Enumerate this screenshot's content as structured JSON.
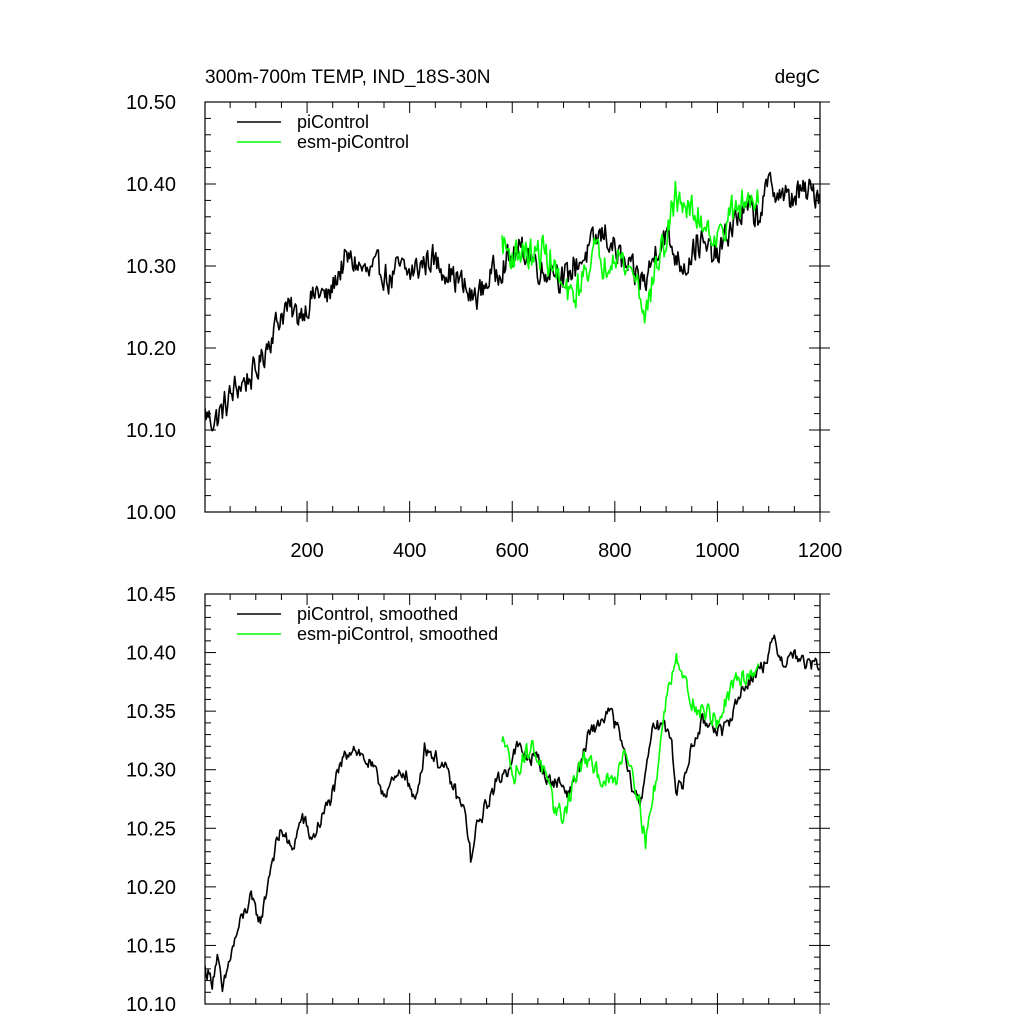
{
  "chart_data": [
    {
      "type": "line",
      "title": "300m-700m TEMP, IND_18S-30N",
      "units": "degC",
      "xlim": [
        1,
        1200
      ],
      "ylim": [
        10.0,
        10.5
      ],
      "xticks": [
        200,
        400,
        600,
        800,
        1000,
        1200
      ],
      "xtick_labels": [
        "200",
        "400",
        "600",
        "800",
        "1000",
        "1200"
      ],
      "yticks": [
        10.0,
        10.1,
        10.2,
        10.3,
        10.4,
        10.5
      ],
      "ytick_labels": [
        "10.00",
        "10.10",
        "10.20",
        "10.30",
        "10.40",
        "10.50"
      ],
      "legend_position": "top-left",
      "series": [
        {
          "name": "piControl",
          "color": "#000000",
          "noise": 0.022,
          "points": [
            [
              1,
              10.12
            ],
            [
              20,
              10.11
            ],
            [
              40,
              10.13
            ],
            [
              60,
              10.15
            ],
            [
              80,
              10.16
            ],
            [
              100,
              10.17
            ],
            [
              120,
              10.2
            ],
            [
              140,
              10.23
            ],
            [
              160,
              10.25
            ],
            [
              180,
              10.24
            ],
            [
              200,
              10.25
            ],
            [
              220,
              10.27
            ],
            [
              240,
              10.26
            ],
            [
              260,
              10.29
            ],
            [
              280,
              10.31
            ],
            [
              300,
              10.3
            ],
            [
              320,
              10.29
            ],
            [
              340,
              10.3
            ],
            [
              360,
              10.28
            ],
            [
              380,
              10.3
            ],
            [
              400,
              10.29
            ],
            [
              420,
              10.3
            ],
            [
              440,
              10.31
            ],
            [
              460,
              10.3
            ],
            [
              480,
              10.29
            ],
            [
              500,
              10.28
            ],
            [
              520,
              10.26
            ],
            [
              540,
              10.27
            ],
            [
              560,
              10.29
            ],
            [
              580,
              10.3
            ],
            [
              600,
              10.31
            ],
            [
              620,
              10.32
            ],
            [
              640,
              10.31
            ],
            [
              660,
              10.29
            ],
            [
              680,
              10.3
            ],
            [
              700,
              10.28
            ],
            [
              720,
              10.3
            ],
            [
              740,
              10.31
            ],
            [
              760,
              10.33
            ],
            [
              780,
              10.34
            ],
            [
              800,
              10.32
            ],
            [
              820,
              10.3
            ],
            [
              840,
              10.29
            ],
            [
              860,
              10.28
            ],
            [
              880,
              10.32
            ],
            [
              900,
              10.34
            ],
            [
              920,
              10.31
            ],
            [
              940,
              10.3
            ],
            [
              960,
              10.33
            ],
            [
              980,
              10.32
            ],
            [
              1000,
              10.31
            ],
            [
              1020,
              10.34
            ],
            [
              1040,
              10.36
            ],
            [
              1060,
              10.37
            ],
            [
              1080,
              10.36
            ],
            [
              1100,
              10.4
            ],
            [
              1120,
              10.39
            ],
            [
              1140,
              10.38
            ],
            [
              1160,
              10.39
            ],
            [
              1180,
              10.39
            ],
            [
              1200,
              10.39
            ]
          ]
        },
        {
          "name": "esm-piControl",
          "color": "#00ff00",
          "noise": 0.024,
          "points": [
            [
              580,
              10.33
            ],
            [
              600,
              10.31
            ],
            [
              620,
              10.32
            ],
            [
              640,
              10.31
            ],
            [
              660,
              10.32
            ],
            [
              680,
              10.3
            ],
            [
              700,
              10.27
            ],
            [
              720,
              10.26
            ],
            [
              740,
              10.29
            ],
            [
              760,
              10.32
            ],
            [
              780,
              10.3
            ],
            [
              800,
              10.32
            ],
            [
              820,
              10.3
            ],
            [
              840,
              10.29
            ],
            [
              860,
              10.24
            ],
            [
              880,
              10.3
            ],
            [
              900,
              10.33
            ],
            [
              920,
              10.39
            ],
            [
              940,
              10.37
            ],
            [
              960,
              10.36
            ],
            [
              980,
              10.35
            ],
            [
              1000,
              10.33
            ],
            [
              1020,
              10.36
            ],
            [
              1040,
              10.37
            ],
            [
              1060,
              10.38
            ],
            [
              1080,
              10.39
            ]
          ]
        }
      ]
    },
    {
      "type": "line",
      "xlim": [
        1,
        1200
      ],
      "ylim": [
        10.1,
        10.45
      ],
      "xticks": [
        200,
        400,
        600,
        800,
        1000,
        1200
      ],
      "yticks": [
        10.1,
        10.15,
        10.2,
        10.25,
        10.3,
        10.35,
        10.4,
        10.45
      ],
      "ytick_labels": [
        "10.10",
        "10.15",
        "10.20",
        "10.25",
        "10.30",
        "10.35",
        "10.40",
        "10.45"
      ],
      "legend_position": "top-left",
      "series": [
        {
          "name": "piControl, smoothed",
          "color": "#000000",
          "noise": 0.008,
          "points": [
            [
              1,
              10.13
            ],
            [
              15,
              10.12
            ],
            [
              25,
              10.14
            ],
            [
              35,
              10.11
            ],
            [
              50,
              10.14
            ],
            [
              70,
              10.17
            ],
            [
              90,
              10.19
            ],
            [
              110,
              10.17
            ],
            [
              130,
              10.22
            ],
            [
              150,
              10.25
            ],
            [
              170,
              10.23
            ],
            [
              190,
              10.26
            ],
            [
              210,
              10.24
            ],
            [
              230,
              10.26
            ],
            [
              250,
              10.28
            ],
            [
              270,
              10.31
            ],
            [
              290,
              10.32
            ],
            [
              310,
              10.31
            ],
            [
              330,
              10.3
            ],
            [
              350,
              10.28
            ],
            [
              370,
              10.29
            ],
            [
              390,
              10.3
            ],
            [
              410,
              10.27
            ],
            [
              430,
              10.32
            ],
            [
              450,
              10.31
            ],
            [
              470,
              10.3
            ],
            [
              490,
              10.28
            ],
            [
              510,
              10.26
            ],
            [
              520,
              10.22
            ],
            [
              530,
              10.25
            ],
            [
              550,
              10.27
            ],
            [
              570,
              10.29
            ],
            [
              590,
              10.3
            ],
            [
              610,
              10.32
            ],
            [
              630,
              10.31
            ],
            [
              650,
              10.31
            ],
            [
              670,
              10.29
            ],
            [
              690,
              10.29
            ],
            [
              710,
              10.28
            ],
            [
              730,
              10.3
            ],
            [
              750,
              10.33
            ],
            [
              770,
              10.34
            ],
            [
              790,
              10.35
            ],
            [
              810,
              10.33
            ],
            [
              830,
              10.29
            ],
            [
              850,
              10.27
            ],
            [
              870,
              10.33
            ],
            [
              890,
              10.34
            ],
            [
              910,
              10.33
            ],
            [
              920,
              10.28
            ],
            [
              935,
              10.29
            ],
            [
              950,
              10.32
            ],
            [
              970,
              10.34
            ],
            [
              990,
              10.34
            ],
            [
              1010,
              10.33
            ],
            [
              1030,
              10.35
            ],
            [
              1050,
              10.37
            ],
            [
              1070,
              10.38
            ],
            [
              1090,
              10.39
            ],
            [
              1110,
              10.41
            ],
            [
              1130,
              10.39
            ],
            [
              1150,
              10.4
            ],
            [
              1170,
              10.39
            ],
            [
              1190,
              10.39
            ],
            [
              1200,
              10.39
            ]
          ]
        },
        {
          "name": "esm-piControl, smoothed",
          "color": "#00ff00",
          "noise": 0.01,
          "points": [
            [
              580,
              10.32
            ],
            [
              590,
              10.33
            ],
            [
              600,
              10.29
            ],
            [
              620,
              10.31
            ],
            [
              640,
              10.32
            ],
            [
              660,
              10.3
            ],
            [
              680,
              10.27
            ],
            [
              700,
              10.26
            ],
            [
              720,
              10.29
            ],
            [
              740,
              10.31
            ],
            [
              760,
              10.3
            ],
            [
              780,
              10.29
            ],
            [
              800,
              10.29
            ],
            [
              820,
              10.32
            ],
            [
              840,
              10.29
            ],
            [
              860,
              10.24
            ],
            [
              880,
              10.29
            ],
            [
              900,
              10.36
            ],
            [
              920,
              10.4
            ],
            [
              940,
              10.37
            ],
            [
              960,
              10.35
            ],
            [
              980,
              10.35
            ],
            [
              1000,
              10.34
            ],
            [
              1020,
              10.36
            ],
            [
              1040,
              10.38
            ],
            [
              1060,
              10.38
            ],
            [
              1080,
              10.39
            ]
          ]
        }
      ]
    }
  ]
}
